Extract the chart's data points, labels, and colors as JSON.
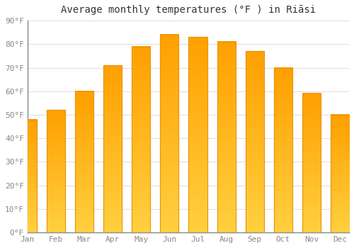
{
  "title": "Average monthly temperatures (°F ) in Riāsi",
  "months": [
    "Jan",
    "Feb",
    "Mar",
    "Apr",
    "May",
    "Jun",
    "Jul",
    "Aug",
    "Sep",
    "Oct",
    "Nov",
    "Dec"
  ],
  "values": [
    48,
    52,
    60,
    71,
    79,
    84,
    83,
    81,
    77,
    70,
    59,
    50
  ],
  "bar_color": "#FFA500",
  "bar_edge_color": "#E8940A",
  "background_color": "#FFFFFF",
  "plot_bg_color": "#FFFFFF",
  "grid_color": "#DDDDDD",
  "ylim": [
    0,
    90
  ],
  "yticks": [
    0,
    10,
    20,
    30,
    40,
    50,
    60,
    70,
    80,
    90
  ],
  "ytick_labels": [
    "0°F",
    "10°F",
    "20°F",
    "30°F",
    "40°F",
    "50°F",
    "60°F",
    "70°F",
    "80°F",
    "90°F"
  ],
  "title_fontsize": 10,
  "tick_fontsize": 8,
  "font_family": "monospace",
  "gradient_bottom": "#FFD040",
  "gradient_top": "#FFA000"
}
